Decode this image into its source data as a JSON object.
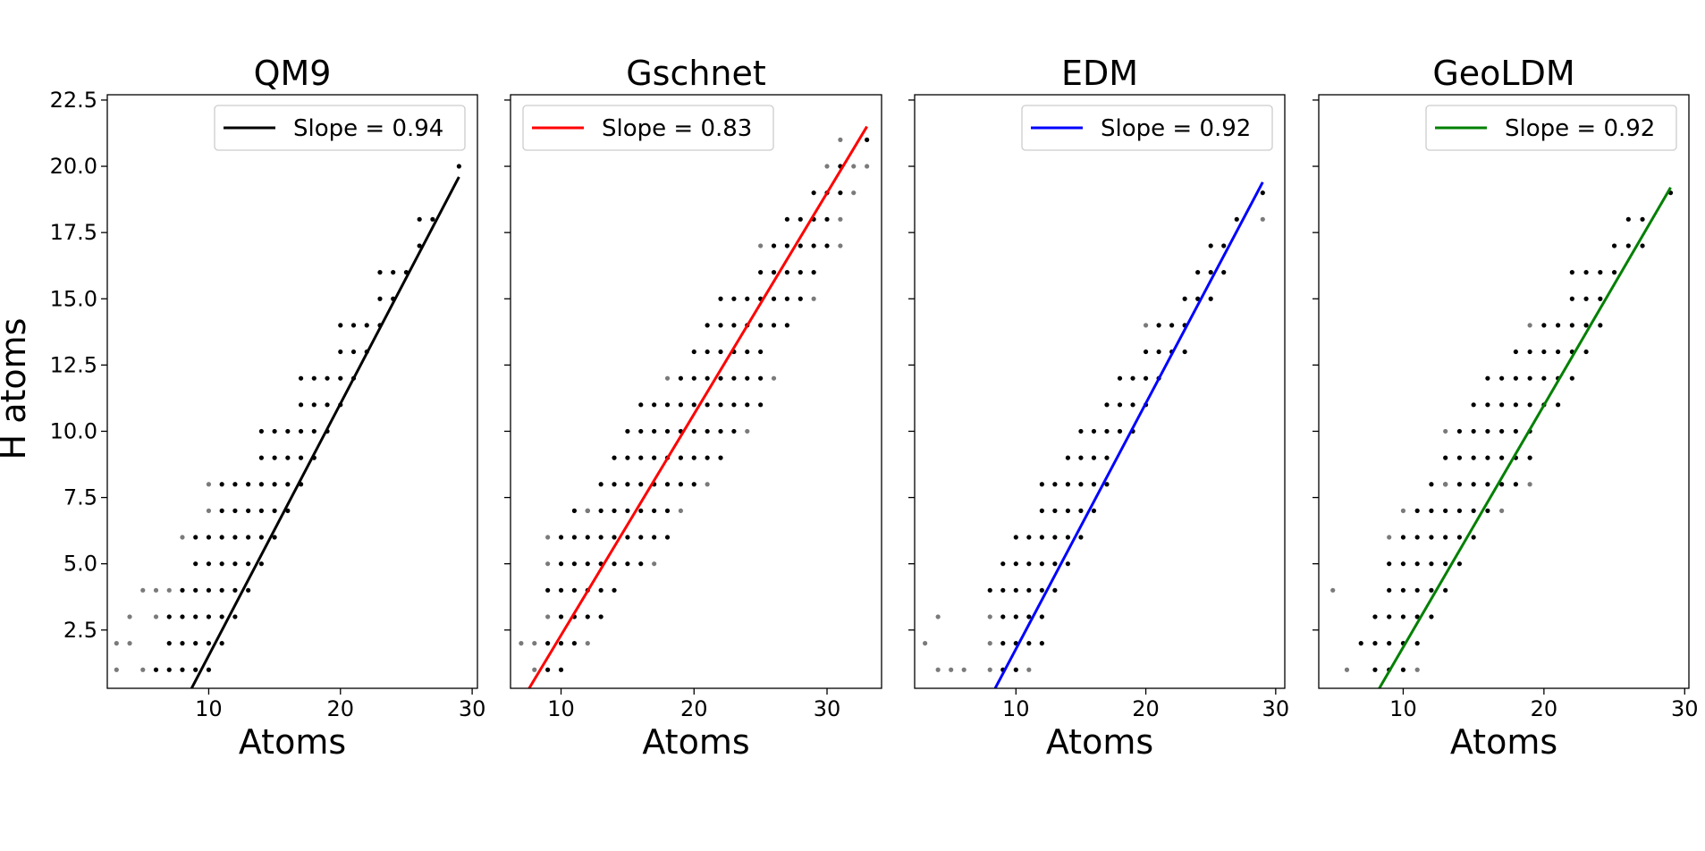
{
  "chart_data": [
    {
      "type": "scatter",
      "title": "QM9",
      "xlabel": "Atoms",
      "ylabel": "H atoms",
      "xlim": [
        2.3,
        30.4
      ],
      "ylim": [
        0.3,
        22.7
      ],
      "xticks": [
        10,
        20,
        30
      ],
      "xtick_labels": [
        "10",
        "20",
        "30"
      ],
      "yticks": [
        2.5,
        5.0,
        7.5,
        10.0,
        12.5,
        15.0,
        17.5,
        20.0,
        22.5
      ],
      "ytick_labels": [
        "2.5",
        "5.0",
        "7.5",
        "10.0",
        "12.5",
        "15.0",
        "17.5",
        "20.0",
        "22.5"
      ],
      "legend": {
        "label": "Slope = 0.94",
        "position": "top-right"
      },
      "fit": {
        "slope": 0.94,
        "x": [
          8.7,
          29
        ],
        "y": [
          0.3,
          19.6
        ],
        "color": "#000000"
      },
      "points": [
        {
          "h": 1,
          "xmin": 6,
          "xmax": 10,
          "faint_x": [
            3,
            5
          ]
        },
        {
          "h": 2,
          "xmin": 7,
          "xmax": 11,
          "faint_x": [
            3,
            4
          ]
        },
        {
          "h": 3,
          "xmin": 7,
          "xmax": 12,
          "faint_x": [
            4,
            6
          ]
        },
        {
          "h": 4,
          "xmin": 8,
          "xmax": 13,
          "faint_x": [
            5,
            6,
            7
          ]
        },
        {
          "h": 5,
          "xmin": 9,
          "xmax": 14,
          "faint_x": []
        },
        {
          "h": 6,
          "xmin": 9,
          "xmax": 15,
          "faint_x": [
            8
          ]
        },
        {
          "h": 7,
          "xmin": 11,
          "xmax": 16,
          "faint_x": [
            10
          ]
        },
        {
          "h": 8,
          "xmin": 11,
          "xmax": 17,
          "faint_x": [
            10
          ]
        },
        {
          "h": 9,
          "xmin": 14,
          "xmax": 18,
          "faint_x": []
        },
        {
          "h": 10,
          "xmin": 14,
          "xmax": 19,
          "faint_x": []
        },
        {
          "h": 11,
          "xmin": 17,
          "xmax": 20,
          "faint_x": []
        },
        {
          "h": 12,
          "xmin": 17,
          "xmax": 21,
          "faint_x": []
        },
        {
          "h": 13,
          "xmin": 20,
          "xmax": 22,
          "faint_x": []
        },
        {
          "h": 14,
          "xmin": 20,
          "xmax": 23,
          "faint_x": []
        },
        {
          "h": 15,
          "xmin": 23,
          "xmax": 24,
          "faint_x": []
        },
        {
          "h": 16,
          "xmin": 23,
          "xmax": 25,
          "faint_x": []
        },
        {
          "h": 17,
          "xmin": 26,
          "xmax": 26,
          "faint_x": []
        },
        {
          "h": 18,
          "xmin": 26,
          "xmax": 27,
          "faint_x": []
        },
        {
          "h": 20,
          "xmin": 29,
          "xmax": 29,
          "faint_x": []
        }
      ]
    },
    {
      "type": "scatter",
      "title": "Gschnet",
      "xlabel": "Atoms",
      "ylabel": "",
      "xlim": [
        6.2,
        34.1
      ],
      "ylim": [
        0.3,
        22.7
      ],
      "xticks": [
        10,
        20,
        30
      ],
      "xtick_labels": [
        "10",
        "20",
        "30"
      ],
      "yticks": [
        2.5,
        5.0,
        7.5,
        10.0,
        12.5,
        15.0,
        17.5,
        20.0,
        22.5
      ],
      "ytick_labels": [],
      "legend": {
        "label": "Slope = 0.83",
        "position": "top-left"
      },
      "fit": {
        "slope": 0.83,
        "x": [
          7.6,
          33
        ],
        "y": [
          0.3,
          21.5
        ],
        "color": "#ff0000"
      },
      "points": [
        {
          "h": 1,
          "xmin": 9,
          "xmax": 10,
          "faint_x": [
            8
          ]
        },
        {
          "h": 2,
          "xmin": 9,
          "xmax": 11,
          "faint_x": [
            7,
            8,
            12
          ]
        },
        {
          "h": 3,
          "xmin": 10,
          "xmax": 13,
          "faint_x": [
            9
          ]
        },
        {
          "h": 4,
          "xmin": 9,
          "xmax": 14,
          "faint_x": []
        },
        {
          "h": 5,
          "xmin": 10,
          "xmax": 16,
          "faint_x": [
            9,
            17
          ]
        },
        {
          "h": 6,
          "xmin": 10,
          "xmax": 18,
          "faint_x": [
            9
          ]
        },
        {
          "h": 7,
          "xmin": 11,
          "xmax": 18,
          "faint_x": [
            12,
            19
          ]
        },
        {
          "h": 8,
          "xmin": 13,
          "xmax": 20,
          "faint_x": [
            21
          ]
        },
        {
          "h": 9,
          "xmin": 14,
          "xmax": 22,
          "faint_x": []
        },
        {
          "h": 10,
          "xmin": 15,
          "xmax": 23,
          "faint_x": [
            24
          ]
        },
        {
          "h": 11,
          "xmin": 16,
          "xmax": 25,
          "faint_x": []
        },
        {
          "h": 12,
          "xmin": 19,
          "xmax": 25,
          "faint_x": [
            18,
            26
          ]
        },
        {
          "h": 13,
          "xmin": 20,
          "xmax": 25,
          "faint_x": []
        },
        {
          "h": 14,
          "xmin": 21,
          "xmax": 27,
          "faint_x": []
        },
        {
          "h": 15,
          "xmin": 22,
          "xmax": 28,
          "faint_x": [
            29
          ]
        },
        {
          "h": 16,
          "xmin": 25,
          "xmax": 29,
          "faint_x": []
        },
        {
          "h": 17,
          "xmin": 26,
          "xmax": 30,
          "faint_x": [
            25,
            31
          ]
        },
        {
          "h": 18,
          "xmin": 27,
          "xmax": 30,
          "faint_x": [
            31
          ]
        },
        {
          "h": 19,
          "xmin": 29,
          "xmax": 31,
          "faint_x": [
            32
          ]
        },
        {
          "h": 20,
          "xmin": 31,
          "xmax": 31,
          "faint_x": [
            30,
            32,
            33
          ]
        },
        {
          "h": 21,
          "xmin": 33,
          "xmax": 33,
          "faint_x": [
            31
          ]
        }
      ]
    },
    {
      "type": "scatter",
      "title": "EDM",
      "xlabel": "Atoms",
      "ylabel": "",
      "xlim": [
        2.2,
        30.7
      ],
      "ylim": [
        0.3,
        22.7
      ],
      "xticks": [
        10,
        20,
        30
      ],
      "xtick_labels": [
        "10",
        "20",
        "30"
      ],
      "yticks": [
        2.5,
        5.0,
        7.5,
        10.0,
        12.5,
        15.0,
        17.5,
        20.0,
        22.5
      ],
      "ytick_labels": [],
      "legend": {
        "label": "Slope = 0.92",
        "position": "top-right"
      },
      "fit": {
        "slope": 0.92,
        "x": [
          8.4,
          29
        ],
        "y": [
          0.3,
          19.4
        ],
        "color": "#0000ff"
      },
      "points": [
        {
          "h": 1,
          "xmin": 9,
          "xmax": 10,
          "faint_x": [
            4,
            5,
            6,
            8,
            11
          ]
        },
        {
          "h": 2,
          "xmin": 9,
          "xmax": 12,
          "faint_x": [
            3,
            8
          ]
        },
        {
          "h": 3,
          "xmin": 9,
          "xmax": 12,
          "faint_x": [
            4,
            8
          ]
        },
        {
          "h": 4,
          "xmin": 8,
          "xmax": 13,
          "faint_x": []
        },
        {
          "h": 5,
          "xmin": 9,
          "xmax": 14,
          "faint_x": []
        },
        {
          "h": 6,
          "xmin": 10,
          "xmax": 15,
          "faint_x": []
        },
        {
          "h": 7,
          "xmin": 12,
          "xmax": 16,
          "faint_x": []
        },
        {
          "h": 8,
          "xmin": 12,
          "xmax": 17,
          "faint_x": []
        },
        {
          "h": 9,
          "xmin": 14,
          "xmax": 17,
          "faint_x": []
        },
        {
          "h": 10,
          "xmin": 15,
          "xmax": 19,
          "faint_x": []
        },
        {
          "h": 11,
          "xmin": 17,
          "xmax": 20,
          "faint_x": []
        },
        {
          "h": 12,
          "xmin": 18,
          "xmax": 21,
          "faint_x": []
        },
        {
          "h": 13,
          "xmin": 20,
          "xmax": 23,
          "faint_x": []
        },
        {
          "h": 14,
          "xmin": 21,
          "xmax": 23,
          "faint_x": [
            20
          ]
        },
        {
          "h": 15,
          "xmin": 23,
          "xmax": 25,
          "faint_x": []
        },
        {
          "h": 16,
          "xmin": 24,
          "xmax": 26,
          "faint_x": []
        },
        {
          "h": 17,
          "xmin": 25,
          "xmax": 26,
          "faint_x": []
        },
        {
          "h": 18,
          "xmin": 27,
          "xmax": 27,
          "faint_x": [
            29
          ]
        },
        {
          "h": 19,
          "xmin": 29,
          "xmax": 29,
          "faint_x": []
        }
      ]
    },
    {
      "type": "scatter",
      "title": "GeoLDM",
      "xlabel": "Atoms",
      "ylabel": "",
      "xlim": [
        4,
        30.3
      ],
      "ylim": [
        0.3,
        22.7
      ],
      "xticks": [
        10,
        20,
        30
      ],
      "xtick_labels": [
        "10",
        "20",
        "30"
      ],
      "yticks": [
        2.5,
        5.0,
        7.5,
        10.0,
        12.5,
        15.0,
        17.5,
        20.0,
        22.5
      ],
      "ytick_labels": [],
      "legend": {
        "label": "Slope = 0.92",
        "position": "top-right"
      },
      "fit": {
        "slope": 0.92,
        "x": [
          8.3,
          29
        ],
        "y": [
          0.3,
          19.2
        ],
        "color": "#008000"
      },
      "points": [
        {
          "h": 1,
          "xmin": 8,
          "xmax": 10,
          "faint_x": [
            6,
            11
          ]
        },
        {
          "h": 2,
          "xmin": 7,
          "xmax": 11,
          "faint_x": []
        },
        {
          "h": 3,
          "xmin": 8,
          "xmax": 12,
          "faint_x": []
        },
        {
          "h": 4,
          "xmin": 9,
          "xmax": 13,
          "faint_x": [
            5
          ]
        },
        {
          "h": 5,
          "xmin": 9,
          "xmax": 14,
          "faint_x": []
        },
        {
          "h": 6,
          "xmin": 10,
          "xmax": 15,
          "faint_x": [
            9
          ]
        },
        {
          "h": 7,
          "xmin": 11,
          "xmax": 16,
          "faint_x": [
            10,
            17
          ]
        },
        {
          "h": 8,
          "xmin": 12,
          "xmax": 18,
          "faint_x": [
            13,
            19
          ]
        },
        {
          "h": 9,
          "xmin": 13,
          "xmax": 19,
          "faint_x": []
        },
        {
          "h": 10,
          "xmin": 14,
          "xmax": 19,
          "faint_x": [
            13
          ]
        },
        {
          "h": 11,
          "xmin": 15,
          "xmax": 21,
          "faint_x": []
        },
        {
          "h": 12,
          "xmin": 16,
          "xmax": 22,
          "faint_x": []
        },
        {
          "h": 13,
          "xmin": 18,
          "xmax": 23,
          "faint_x": []
        },
        {
          "h": 14,
          "xmin": 20,
          "xmax": 24,
          "faint_x": [
            19
          ]
        },
        {
          "h": 15,
          "xmin": 22,
          "xmax": 24,
          "faint_x": []
        },
        {
          "h": 16,
          "xmin": 22,
          "xmax": 25,
          "faint_x": []
        },
        {
          "h": 17,
          "xmin": 25,
          "xmax": 27,
          "faint_x": []
        },
        {
          "h": 18,
          "xmin": 26,
          "xmax": 27,
          "faint_x": []
        },
        {
          "h": 19,
          "xmin": 29,
          "xmax": 29,
          "faint_x": []
        }
      ]
    }
  ]
}
